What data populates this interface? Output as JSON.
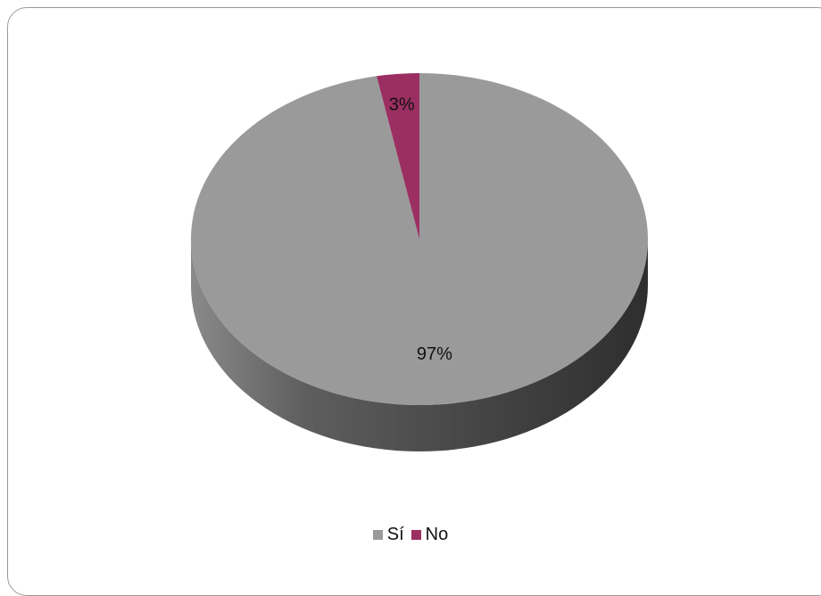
{
  "chart_data": {
    "type": "pie",
    "categories": [
      "Sí",
      "No"
    ],
    "values": [
      97,
      3
    ],
    "labels": [
      "97%",
      "3%"
    ],
    "colors": [
      "#9a9a9a",
      "#9b2f62"
    ],
    "legend_position": "bottom",
    "style": "3d"
  }
}
